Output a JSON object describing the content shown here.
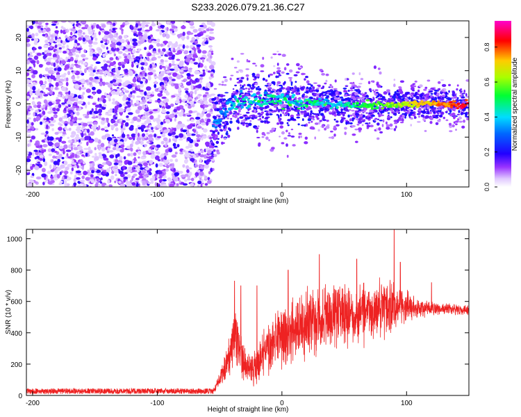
{
  "figure": {
    "title": "S233.2026.079.21.36.C27"
  },
  "chart_data": [
    {
      "type": "heatmap",
      "description_role": "spectrogram",
      "xlabel": "Height of straight line (km)",
      "ylabel": "Frequency (Hz)",
      "xlim": [
        -205,
        150
      ],
      "ylim": [
        -25,
        25
      ],
      "xticks": [
        -200,
        -100,
        0,
        100
      ],
      "xtick_labels": [
        "-200",
        "-100",
        "0",
        "100"
      ],
      "yticks": [
        20,
        10,
        0,
        -10,
        -20
      ],
      "ytick_labels": [
        "20",
        "10",
        "0",
        "-10",
        "-20"
      ],
      "noise_region_km": [
        -205,
        -55
      ],
      "signal_onset_km": -55,
      "signal_center_track": {
        "km": [
          -55,
          -45,
          -35,
          -25,
          -10,
          0,
          20,
          40,
          60,
          80,
          100,
          120,
          150
        ],
        "hz": [
          -6,
          -2,
          1,
          1,
          1.5,
          1,
          0.5,
          0,
          -0.5,
          -0.5,
          0,
          0,
          0
        ]
      },
      "colorbar": {
        "label": "Normalized spectral amplitude",
        "range": [
          0,
          0.95
        ],
        "ticks": [
          0.8,
          0.6,
          0.4,
          0.2,
          0.0
        ],
        "tick_labels": [
          "0.8",
          "0.6",
          "0.4",
          "0.2",
          "0.0"
        ],
        "colors": [
          "#ffffff",
          "#cc99ff",
          "#7700ee",
          "#0000ff",
          "#00ccff",
          "#00ff66",
          "#ccff00",
          "#ffcc00",
          "#ff0000",
          "#ff00cc"
        ]
      }
    },
    {
      "type": "line",
      "xlabel": "Height of straight line (km)",
      "ylabel": "SNR (10 * v/v)",
      "xlim": [
        -205,
        150
      ],
      "ylim": [
        0,
        1060
      ],
      "xticks": [
        -200,
        -100,
        0,
        100
      ],
      "xtick_labels": [
        "-200",
        "-100",
        "0",
        "100"
      ],
      "yticks": [
        0,
        200,
        400,
        600,
        800,
        1000
      ],
      "ytick_labels": [
        "0",
        "200",
        "400",
        "600",
        "800",
        "1000"
      ],
      "series": [
        {
          "name": "SNR",
          "color": "#ee2222",
          "envelope_x": [
            -205,
            -55,
            -45,
            -42,
            -38,
            -33,
            -30,
            -27,
            -22,
            -18,
            -15,
            -10,
            -5,
            0,
            10,
            20,
            30,
            50,
            70,
            85,
            90,
            95,
            100,
            110,
            120,
            135,
            150
          ],
          "envelope_mean": [
            25,
            30,
            180,
            240,
            400,
            280,
            200,
            180,
            190,
            220,
            270,
            310,
            350,
            380,
            420,
            450,
            480,
            510,
            540,
            560,
            550,
            560,
            570,
            560,
            555,
            550,
            545
          ],
          "envelope_spread": [
            10,
            12,
            120,
            200,
            250,
            200,
            120,
            100,
            160,
            180,
            160,
            200,
            220,
            230,
            240,
            250,
            250,
            240,
            230,
            220,
            200,
            180,
            140,
            80,
            50,
            40,
            40
          ],
          "peaks": [
            [
              -38,
              730
            ],
            [
              -33,
              700
            ],
            [
              -20,
              700
            ],
            [
              5,
              800
            ],
            [
              30,
              900
            ],
            [
              60,
              870
            ],
            [
              90,
              1060
            ],
            [
              95,
              850
            ],
            [
              120,
              720
            ]
          ]
        }
      ]
    }
  ]
}
